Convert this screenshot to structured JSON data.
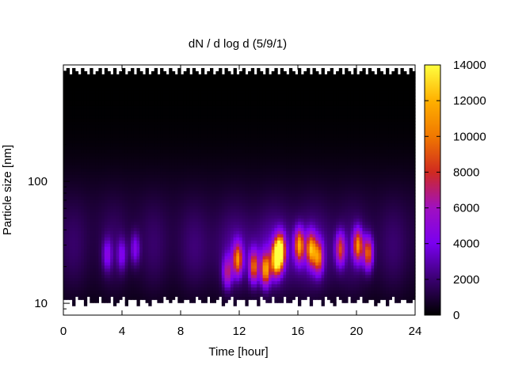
{
  "chart_data": {
    "type": "heatmap",
    "title": "dN / d log d (5/9/1)",
    "xlabel": "Time [hour]",
    "ylabel": "Particle size [nm]",
    "xlim": [
      0,
      24
    ],
    "ylim": [
      8,
      900
    ],
    "y_scale": "log",
    "x_ticks": [
      0,
      4,
      8,
      12,
      16,
      20,
      24
    ],
    "x_tick_labels": [
      "0",
      "4",
      "8",
      "12",
      "16",
      "20",
      "24"
    ],
    "y_ticks": [
      10,
      100
    ],
    "y_tick_labels": [
      "10",
      "100"
    ],
    "colorbar": {
      "range": [
        0,
        14000
      ],
      "ticks": [
        0,
        2000,
        4000,
        6000,
        8000,
        10000,
        12000,
        14000
      ],
      "tick_labels": [
        "0",
        "2000",
        "4000",
        "6000",
        "8000",
        "10000",
        "12000",
        "14000"
      ],
      "colormap": [
        "#000000",
        "#3a0070",
        "#7a00f0",
        "#a010c0",
        "#d02a20",
        "#f07800",
        "#ffb000",
        "#ffff40"
      ]
    },
    "valid_size_range_nm": [
      10.5,
      800
    ],
    "background_level": 1200,
    "peaks": [
      {
        "time": 3.0,
        "size": 25,
        "value": 3200
      },
      {
        "time": 4.0,
        "size": 25,
        "value": 3000
      },
      {
        "time": 4.9,
        "size": 28,
        "value": 3300
      },
      {
        "time": 11.2,
        "size": 18,
        "value": 5200
      },
      {
        "time": 11.9,
        "size": 23,
        "value": 8500
      },
      {
        "time": 13.0,
        "size": 20,
        "value": 7800
      },
      {
        "time": 13.8,
        "size": 19,
        "value": 9500
      },
      {
        "time": 14.5,
        "size": 23,
        "value": 11000
      },
      {
        "time": 14.8,
        "size": 27,
        "value": 13000
      },
      {
        "time": 16.1,
        "size": 30,
        "value": 9200
      },
      {
        "time": 16.9,
        "size": 28,
        "value": 9000
      },
      {
        "time": 17.4,
        "size": 24,
        "value": 8000
      },
      {
        "time": 18.9,
        "size": 28,
        "value": 6800
      },
      {
        "time": 20.1,
        "size": 30,
        "value": 8800
      },
      {
        "time": 20.8,
        "size": 26,
        "value": 8200
      }
    ]
  }
}
